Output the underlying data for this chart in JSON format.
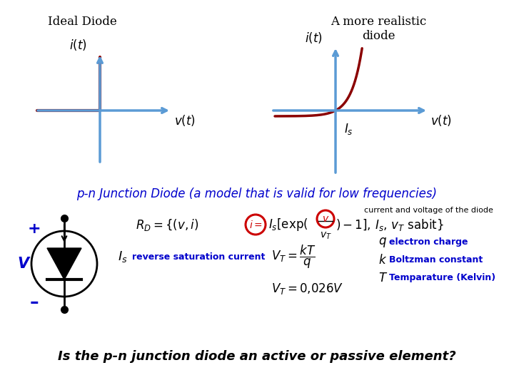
{
  "bg_color": "#ffffff",
  "ideal_diode_title": "Ideal Diode",
  "realistic_diode_title": "A more realistic\ndiode",
  "section_title": "p-n Junction Diode (a model that is valid for low frequencies)",
  "bottom_question": "Is the p-n junction diode an active or passive element?",
  "dark_red": "#8B0000",
  "blue_arrow": "#5B9BD5",
  "blue_text": "#0000CC",
  "red_ann": "#CC0000"
}
